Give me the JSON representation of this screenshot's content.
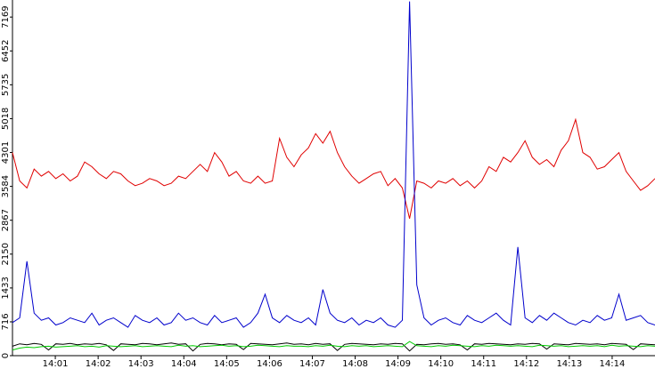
{
  "chart_data": {
    "type": "line",
    "ylim": [
      0,
      7530
    ],
    "yticks": [
      0,
      716,
      1433,
      2150,
      2867,
      3584,
      4301,
      5018,
      5735,
      6452,
      7169
    ],
    "xlim": [
      0,
      15
    ],
    "xticks": [
      {
        "value": 1,
        "label": "14:01"
      },
      {
        "value": 2,
        "label": "14:02"
      },
      {
        "value": 3,
        "label": "14:03"
      },
      {
        "value": 4,
        "label": "14:04"
      },
      {
        "value": 5,
        "label": "14:05"
      },
      {
        "value": 6,
        "label": "14:06"
      },
      {
        "value": 7,
        "label": "14:07"
      },
      {
        "value": 8,
        "label": "14:08"
      },
      {
        "value": 9,
        "label": "14:09"
      },
      {
        "value": 10,
        "label": "14:10"
      },
      {
        "value": 11,
        "label": "14:11"
      },
      {
        "value": 12,
        "label": "14:12"
      },
      {
        "value": 13,
        "label": "14:13"
      },
      {
        "value": 14,
        "label": "14:14"
      }
    ],
    "series": [
      {
        "color": "#e00000",
        "values": [
          4300,
          3700,
          3550,
          3950,
          3800,
          3900,
          3750,
          3850,
          3700,
          3800,
          4100,
          4000,
          3850,
          3750,
          3900,
          3850,
          3700,
          3600,
          3650,
          3750,
          3700,
          3600,
          3650,
          3800,
          3750,
          3900,
          4050,
          3900,
          4300,
          4100,
          3800,
          3900,
          3700,
          3650,
          3800,
          3650,
          3700,
          4600,
          4200,
          4000,
          4250,
          4400,
          4700,
          4500,
          4750,
          4300,
          4000,
          3800,
          3650,
          3750,
          3850,
          3900,
          3600,
          3750,
          3550,
          2900,
          3700,
          3650,
          3550,
          3700,
          3650,
          3750,
          3600,
          3700,
          3550,
          3700,
          4000,
          3900,
          4200,
          4100,
          4300,
          4550,
          4200,
          4050,
          4150,
          4000,
          4350,
          4550,
          5000,
          4300,
          4200,
          3950,
          4000,
          4150,
          4300,
          3900,
          3700,
          3500,
          3600,
          3750
        ]
      },
      {
        "color": "#0000cc",
        "values": [
          700,
          800,
          2000,
          900,
          750,
          800,
          650,
          700,
          800,
          750,
          700,
          900,
          650,
          750,
          800,
          700,
          600,
          850,
          750,
          700,
          800,
          650,
          700,
          900,
          750,
          800,
          700,
          650,
          850,
          700,
          750,
          800,
          600,
          700,
          900,
          1300,
          800,
          700,
          850,
          750,
          700,
          800,
          650,
          1400,
          900,
          750,
          700,
          800,
          650,
          750,
          700,
          800,
          650,
          600,
          750,
          7500,
          1500,
          800,
          650,
          750,
          800,
          700,
          650,
          850,
          750,
          700,
          800,
          900,
          750,
          650,
          2300,
          800,
          700,
          850,
          750,
          900,
          800,
          700,
          650,
          750,
          700,
          850,
          750,
          800,
          1300,
          750,
          800,
          850,
          700,
          650
        ]
      },
      {
        "color": "#000000",
        "values": [
          200,
          250,
          230,
          260,
          240,
          120,
          250,
          240,
          260,
          230,
          250,
          240,
          260,
          230,
          110,
          250,
          240,
          230,
          260,
          250,
          230,
          250,
          270,
          240,
          250,
          100,
          240,
          260,
          250,
          230,
          250,
          240,
          130,
          260,
          250,
          240,
          230,
          250,
          270,
          240,
          250,
          230,
          260,
          240,
          250,
          110,
          240,
          260,
          250,
          240,
          230,
          250,
          240,
          260,
          250,
          100,
          240,
          230,
          250,
          260,
          240,
          250,
          230,
          120,
          250,
          240,
          260,
          250,
          240,
          230,
          250,
          240,
          260,
          250,
          140,
          250,
          240,
          230,
          260,
          250,
          240,
          250,
          230,
          260,
          250,
          240,
          130,
          250,
          240,
          230
        ]
      },
      {
        "color": "#00cc00",
        "values": [
          120,
          160,
          180,
          170,
          190,
          200,
          180,
          190,
          200,
          210,
          190,
          200,
          180,
          210,
          200,
          190,
          200,
          210,
          190,
          200,
          210,
          200,
          190,
          220,
          200,
          210,
          190,
          200,
          210,
          220,
          200,
          210,
          190,
          200,
          220,
          210,
          200,
          190,
          210,
          200,
          200,
          190,
          210,
          200,
          220,
          200,
          190,
          210,
          200,
          210,
          190,
          200,
          210,
          200,
          190,
          300,
          210,
          200,
          190,
          210,
          200,
          220,
          210,
          200,
          190,
          210,
          200,
          220,
          210,
          200,
          210,
          200,
          190,
          220,
          210,
          200,
          210,
          190,
          200,
          210,
          200,
          210,
          190,
          220,
          200,
          210,
          200,
          190,
          210,
          200
        ]
      }
    ]
  }
}
